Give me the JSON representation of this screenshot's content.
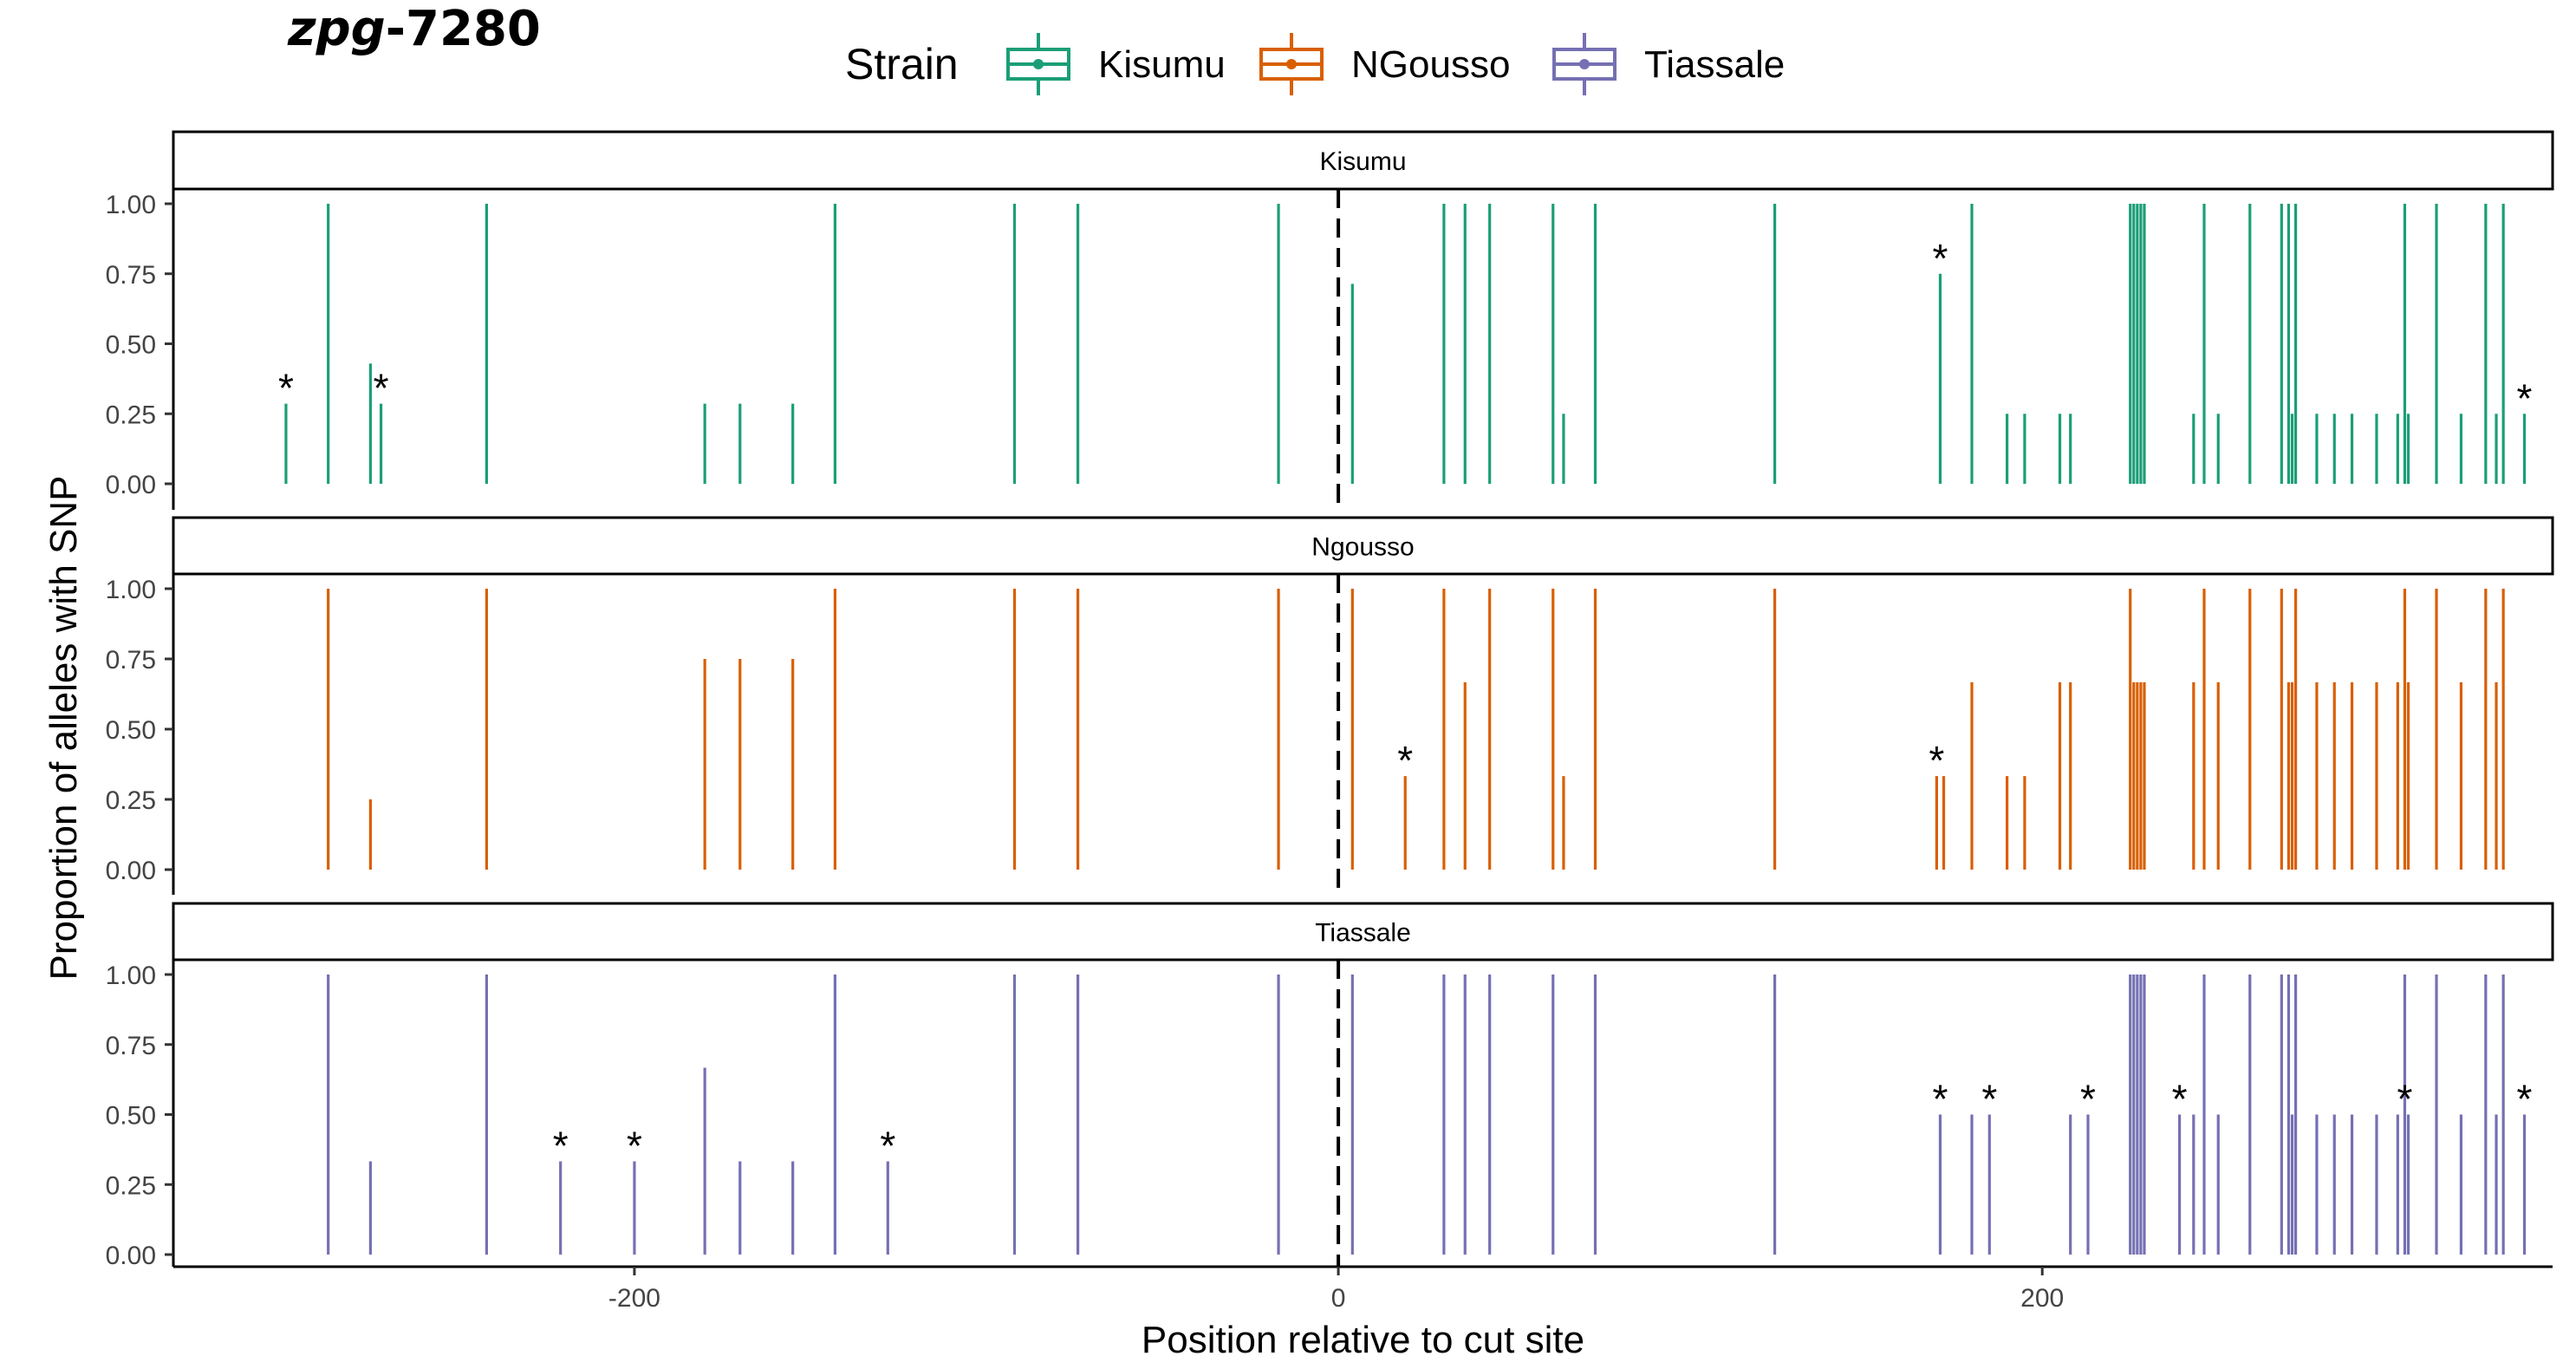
{
  "chart_data": {
    "type": "bar",
    "title_italic": "zpg",
    "title_rest": "-7280",
    "xlabel": "Position relative to cut site",
    "ylabel": "Proportion of alleles with SNP",
    "xlim": [
      -331,
      345
    ],
    "ylim": [
      0,
      1
    ],
    "x_ticks": [
      -200,
      0,
      200
    ],
    "y_ticks": [
      0,
      0.25,
      0.5,
      0.75,
      1
    ],
    "y_tick_labels": [
      "0.00",
      "0.25",
      "0.50",
      "0.75",
      "1.00"
    ],
    "vline_x": 0,
    "legend": {
      "title": "Strain",
      "position": "top",
      "entries": [
        {
          "label": "Kisumu",
          "color": "#1b9e77"
        },
        {
          "label": "NGousso",
          "color": "#d95f02"
        },
        {
          "label": "Tiassale",
          "color": "#7570b3"
        }
      ]
    },
    "panels": [
      {
        "strip": "Kisumu",
        "color": "#1b9e77",
        "bars": [
          {
            "x": -299,
            "y": 0.286,
            "star": true
          },
          {
            "x": -287,
            "y": 1.0
          },
          {
            "x": -275,
            "y": 0.429
          },
          {
            "x": -272,
            "y": 0.286,
            "star": true
          },
          {
            "x": -242,
            "y": 1.0
          },
          {
            "x": -180,
            "y": 0.286
          },
          {
            "x": -170,
            "y": 0.286
          },
          {
            "x": -155,
            "y": 0.286
          },
          {
            "x": -143,
            "y": 1.0
          },
          {
            "x": -92,
            "y": 1.0
          },
          {
            "x": -74,
            "y": 1.0
          },
          {
            "x": -17,
            "y": 1.0
          },
          {
            "x": 4,
            "y": 0.714
          },
          {
            "x": 30,
            "y": 1.0
          },
          {
            "x": 36,
            "y": 1.0
          },
          {
            "x": 43,
            "y": 1.0
          },
          {
            "x": 61,
            "y": 1.0
          },
          {
            "x": 64,
            "y": 0.25
          },
          {
            "x": 73,
            "y": 1.0
          },
          {
            "x": 124,
            "y": 1.0
          },
          {
            "x": 171,
            "y": 0.75,
            "star": true
          },
          {
            "x": 180,
            "y": 1.0
          },
          {
            "x": 190,
            "y": 0.25
          },
          {
            "x": 195,
            "y": 0.25
          },
          {
            "x": 205,
            "y": 0.25
          },
          {
            "x": 208,
            "y": 0.25
          },
          {
            "x": 225,
            "y": 1.0
          },
          {
            "x": 226,
            "y": 1.0
          },
          {
            "x": 227,
            "y": 1.0
          },
          {
            "x": 228,
            "y": 1.0
          },
          {
            "x": 229,
            "y": 1.0
          },
          {
            "x": 243,
            "y": 0.25
          },
          {
            "x": 246,
            "y": 1.0
          },
          {
            "x": 250,
            "y": 0.25
          },
          {
            "x": 259,
            "y": 1.0
          },
          {
            "x": 268,
            "y": 1.0
          },
          {
            "x": 270,
            "y": 1.0
          },
          {
            "x": 271,
            "y": 0.25
          },
          {
            "x": 272,
            "y": 1.0
          },
          {
            "x": 278,
            "y": 0.25
          },
          {
            "x": 283,
            "y": 0.25
          },
          {
            "x": 288,
            "y": 0.25
          },
          {
            "x": 295,
            "y": 0.25
          },
          {
            "x": 301,
            "y": 0.25
          },
          {
            "x": 303,
            "y": 1.0
          },
          {
            "x": 304,
            "y": 0.25
          },
          {
            "x": 312,
            "y": 1.0
          },
          {
            "x": 319,
            "y": 0.25
          },
          {
            "x": 326,
            "y": 1.0
          },
          {
            "x": 329,
            "y": 0.25
          },
          {
            "x": 331,
            "y": 1.0
          },
          {
            "x": 337,
            "y": 0.25,
            "star": true
          }
        ]
      },
      {
        "strip": "Ngousso",
        "color": "#d95f02",
        "bars": [
          {
            "x": -287,
            "y": 1.0
          },
          {
            "x": -275,
            "y": 0.25
          },
          {
            "x": -242,
            "y": 1.0
          },
          {
            "x": -180,
            "y": 0.75
          },
          {
            "x": -170,
            "y": 0.75
          },
          {
            "x": -155,
            "y": 0.75
          },
          {
            "x": -143,
            "y": 1.0
          },
          {
            "x": -92,
            "y": 1.0
          },
          {
            "x": -74,
            "y": 1.0
          },
          {
            "x": -17,
            "y": 1.0
          },
          {
            "x": 4,
            "y": 1.0
          },
          {
            "x": 19,
            "y": 0.333,
            "star": true
          },
          {
            "x": 30,
            "y": 1.0
          },
          {
            "x": 36,
            "y": 0.667
          },
          {
            "x": 43,
            "y": 1.0
          },
          {
            "x": 61,
            "y": 1.0
          },
          {
            "x": 64,
            "y": 0.333
          },
          {
            "x": 73,
            "y": 1.0
          },
          {
            "x": 124,
            "y": 1.0
          },
          {
            "x": 170,
            "y": 0.333,
            "star": true
          },
          {
            "x": 172,
            "y": 0.333
          },
          {
            "x": 180,
            "y": 0.667
          },
          {
            "x": 190,
            "y": 0.333
          },
          {
            "x": 195,
            "y": 0.333
          },
          {
            "x": 205,
            "y": 0.667
          },
          {
            "x": 208,
            "y": 0.667
          },
          {
            "x": 225,
            "y": 1.0
          },
          {
            "x": 226,
            "y": 0.667
          },
          {
            "x": 227,
            "y": 0.667
          },
          {
            "x": 228,
            "y": 0.667
          },
          {
            "x": 229,
            "y": 0.667
          },
          {
            "x": 243,
            "y": 0.667
          },
          {
            "x": 246,
            "y": 1.0
          },
          {
            "x": 250,
            "y": 0.667
          },
          {
            "x": 259,
            "y": 1.0
          },
          {
            "x": 268,
            "y": 1.0
          },
          {
            "x": 270,
            "y": 0.667
          },
          {
            "x": 271,
            "y": 0.667
          },
          {
            "x": 272,
            "y": 1.0
          },
          {
            "x": 278,
            "y": 0.667
          },
          {
            "x": 283,
            "y": 0.667
          },
          {
            "x": 288,
            "y": 0.667
          },
          {
            "x": 295,
            "y": 0.667
          },
          {
            "x": 301,
            "y": 0.667
          },
          {
            "x": 303,
            "y": 1.0
          },
          {
            "x": 304,
            "y": 0.667
          },
          {
            "x": 312,
            "y": 1.0
          },
          {
            "x": 319,
            "y": 0.667
          },
          {
            "x": 326,
            "y": 1.0
          },
          {
            "x": 329,
            "y": 0.667
          },
          {
            "x": 331,
            "y": 1.0
          }
        ]
      },
      {
        "strip": "Tiassale",
        "color": "#7570b3",
        "bars": [
          {
            "x": -287,
            "y": 1.0
          },
          {
            "x": -275,
            "y": 0.333
          },
          {
            "x": -242,
            "y": 1.0
          },
          {
            "x": -221,
            "y": 0.333,
            "star": true
          },
          {
            "x": -200,
            "y": 0.333,
            "star": true
          },
          {
            "x": -180,
            "y": 0.667
          },
          {
            "x": -170,
            "y": 0.333
          },
          {
            "x": -155,
            "y": 0.333
          },
          {
            "x": -143,
            "y": 1.0
          },
          {
            "x": -128,
            "y": 0.333,
            "star": true
          },
          {
            "x": -92,
            "y": 1.0
          },
          {
            "x": -74,
            "y": 1.0
          },
          {
            "x": -17,
            "y": 1.0
          },
          {
            "x": 4,
            "y": 1.0
          },
          {
            "x": 30,
            "y": 1.0
          },
          {
            "x": 36,
            "y": 1.0
          },
          {
            "x": 43,
            "y": 1.0
          },
          {
            "x": 61,
            "y": 1.0
          },
          {
            "x": 73,
            "y": 1.0
          },
          {
            "x": 124,
            "y": 1.0
          },
          {
            "x": 171,
            "y": 0.5,
            "star": true
          },
          {
            "x": 180,
            "y": 0.5
          },
          {
            "x": 185,
            "y": 0.5,
            "star": true
          },
          {
            "x": 208,
            "y": 0.5
          },
          {
            "x": 213,
            "y": 0.5,
            "star": true
          },
          {
            "x": 225,
            "y": 1.0
          },
          {
            "x": 226,
            "y": 1.0
          },
          {
            "x": 227,
            "y": 1.0
          },
          {
            "x": 228,
            "y": 1.0
          },
          {
            "x": 229,
            "y": 1.0
          },
          {
            "x": 239,
            "y": 0.5,
            "star": true
          },
          {
            "x": 243,
            "y": 0.5
          },
          {
            "x": 246,
            "y": 1.0
          },
          {
            "x": 250,
            "y": 0.5
          },
          {
            "x": 259,
            "y": 1.0
          },
          {
            "x": 268,
            "y": 1.0
          },
          {
            "x": 270,
            "y": 1.0
          },
          {
            "x": 271,
            "y": 0.5
          },
          {
            "x": 272,
            "y": 1.0
          },
          {
            "x": 278,
            "y": 0.5
          },
          {
            "x": 283,
            "y": 0.5
          },
          {
            "x": 288,
            "y": 0.5
          },
          {
            "x": 295,
            "y": 0.5
          },
          {
            "x": 301,
            "y": 0.5
          },
          {
            "x": 303,
            "y": 1.0,
            "star_at": 0.5
          },
          {
            "x": 304,
            "y": 0.5
          },
          {
            "x": 312,
            "y": 1.0
          },
          {
            "x": 319,
            "y": 0.5
          },
          {
            "x": 326,
            "y": 1.0
          },
          {
            "x": 329,
            "y": 0.5
          },
          {
            "x": 331,
            "y": 1.0
          },
          {
            "x": 337,
            "y": 0.5,
            "star": true
          }
        ]
      }
    ]
  }
}
